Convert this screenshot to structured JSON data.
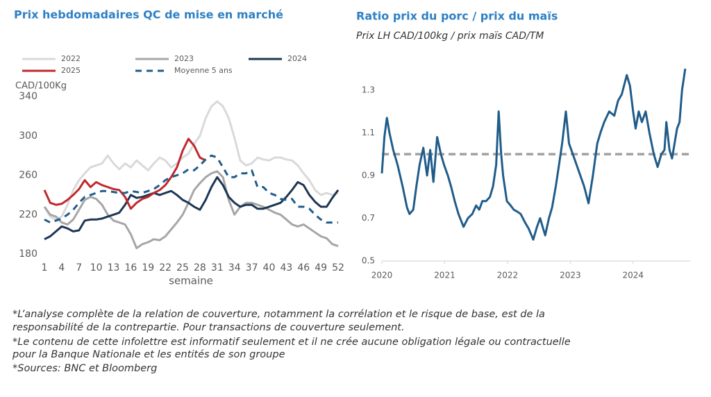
{
  "chart_data": [
    {
      "type": "line",
      "title": "Prix hebdomadaires QC de mise en marché",
      "ylabel": "CAD/100Kg",
      "xlabel": "semaine",
      "x": [
        1,
        2,
        3,
        4,
        5,
        6,
        7,
        8,
        9,
        10,
        11,
        12,
        13,
        14,
        15,
        16,
        17,
        18,
        19,
        20,
        21,
        22,
        23,
        24,
        25,
        26,
        27,
        28,
        29,
        30,
        31,
        32,
        33,
        34,
        35,
        36,
        37,
        38,
        39,
        40,
        41,
        42,
        43,
        44,
        45,
        46,
        47,
        48,
        49,
        50,
        51,
        52
      ],
      "xlim": [
        1,
        52
      ],
      "xticks": [
        1,
        4,
        7,
        10,
        13,
        16,
        19,
        22,
        25,
        28,
        31,
        34,
        37,
        40,
        43,
        46,
        49,
        52
      ],
      "ylim": [
        180,
        340
      ],
      "yticks": [
        180,
        220,
        260,
        300,
        340
      ],
      "series": [
        {
          "name": "2022",
          "color": "#d9d9d9",
          "style": "solid",
          "values": [
            228,
            218,
            215,
            218,
            230,
            245,
            255,
            262,
            268,
            270,
            272,
            280,
            272,
            266,
            272,
            268,
            275,
            270,
            265,
            272,
            278,
            275,
            268,
            272,
            278,
            282,
            292,
            300,
            318,
            330,
            335,
            330,
            318,
            298,
            275,
            270,
            272,
            278,
            276,
            275,
            278,
            278,
            276,
            275,
            270,
            262,
            255,
            245,
            240,
            242,
            240,
            242
          ]
        },
        {
          "name": "2023",
          "color": "#a6a6a6",
          "style": "solid",
          "values": [
            228,
            220,
            218,
            212,
            210,
            215,
            225,
            235,
            238,
            236,
            230,
            220,
            214,
            212,
            210,
            200,
            186,
            190,
            192,
            195,
            194,
            198,
            205,
            212,
            220,
            232,
            245,
            252,
            258,
            262,
            264,
            258,
            235,
            220,
            228,
            232,
            232,
            230,
            228,
            225,
            222,
            220,
            215,
            210,
            208,
            210,
            206,
            202,
            198,
            196,
            190,
            188
          ]
        },
        {
          "name": "2024",
          "color": "#1c3553",
          "style": "solid",
          "values": [
            195,
            198,
            203,
            208,
            206,
            203,
            204,
            214,
            215,
            215,
            216,
            218,
            220,
            222,
            230,
            240,
            237,
            238,
            240,
            242,
            240,
            242,
            244,
            240,
            235,
            232,
            228,
            225,
            235,
            248,
            258,
            250,
            238,
            232,
            228,
            230,
            230,
            226,
            226,
            228,
            230,
            232,
            238,
            245,
            253,
            250,
            240,
            233,
            228,
            228,
            237,
            245
          ]
        },
        {
          "name": "2025",
          "color": "#c0282d",
          "style": "solid",
          "values": [
            245,
            232,
            230,
            231,
            235,
            240,
            246,
            255,
            248,
            253,
            250,
            248,
            246,
            245,
            238,
            226,
            232,
            236,
            238,
            242,
            245,
            250,
            258,
            268,
            285,
            297,
            290,
            278,
            275,
            null,
            null,
            null,
            null,
            null,
            null,
            null,
            null,
            null,
            null,
            null,
            null,
            null,
            null,
            null,
            null,
            null,
            null,
            null,
            null,
            null,
            null,
            null
          ]
        },
        {
          "name": "Moyenne 5 ans",
          "color": "#1f5c8a",
          "style": "dashed",
          "values": [
            215,
            212,
            214,
            216,
            220,
            225,
            232,
            238,
            240,
            242,
            244,
            244,
            243,
            242,
            242,
            244,
            243,
            242,
            244,
            246,
            250,
            255,
            258,
            260,
            262,
            266,
            265,
            270,
            276,
            280,
            278,
            268,
            258,
            258,
            262,
            262,
            265,
            248,
            248,
            242,
            240,
            236,
            235,
            236,
            228,
            228,
            226,
            220,
            215,
            212,
            212,
            212
          ]
        }
      ]
    },
    {
      "type": "line",
      "title": "Ratio prix du porc / prix du maïs",
      "subtitle": "Prix LH CAD/100kg / prix maïs CAD/TM",
      "x": [
        2020.0,
        2020.04,
        2020.08,
        2020.12,
        2020.18,
        2020.25,
        2020.33,
        2020.4,
        2020.44,
        2020.5,
        2020.55,
        2020.6,
        2020.66,
        2020.72,
        2020.77,
        2020.82,
        2020.88,
        2020.94,
        2020.99,
        2021.05,
        2021.1,
        2021.16,
        2021.22,
        2021.3,
        2021.37,
        2021.44,
        2021.5,
        2021.55,
        2021.6,
        2021.66,
        2021.72,
        2021.77,
        2021.82,
        2021.86,
        2021.9,
        2021.93,
        2021.99,
        2022.05,
        2022.1,
        2022.16,
        2022.21,
        2022.28,
        2022.34,
        2022.41,
        2022.47,
        2022.52,
        2022.56,
        2022.6,
        2022.66,
        2022.71,
        2022.77,
        2022.82,
        2022.87,
        2022.93,
        2022.98,
        2023.04,
        2023.1,
        2023.16,
        2023.22,
        2023.29,
        2023.36,
        2023.43,
        2023.48,
        2023.54,
        2023.62,
        2023.7,
        2023.76,
        2023.82,
        2023.9,
        2023.95,
        2024.0,
        2024.04,
        2024.09,
        2024.14,
        2024.2,
        2024.26,
        2024.33,
        2024.39,
        2024.45,
        2024.5,
        2024.53,
        2024.58,
        2024.62,
        2024.66,
        2024.7,
        2024.74,
        2024.78,
        2024.83
      ],
      "xlim": [
        2020.0,
        2024.92
      ],
      "xticks": [
        2020,
        2021,
        2022,
        2023,
        2024
      ],
      "ylim": [
        0.5,
        1.4
      ],
      "yticks": [
        0.5,
        0.7,
        0.9,
        1.1,
        1.3
      ],
      "hline": 1.0,
      "hline_color": "#a0a0a0",
      "series": [
        {
          "name": "Ratio",
          "color": "#1f5c8a",
          "style": "solid",
          "values": [
            0.91,
            1.08,
            1.17,
            1.1,
            1.02,
            0.95,
            0.85,
            0.75,
            0.72,
            0.74,
            0.85,
            0.95,
            1.03,
            0.9,
            1.02,
            0.87,
            1.08,
            1.0,
            0.95,
            0.9,
            0.85,
            0.78,
            0.72,
            0.66,
            0.7,
            0.72,
            0.76,
            0.74,
            0.78,
            0.78,
            0.8,
            0.85,
            0.95,
            1.2,
            1.0,
            0.9,
            0.78,
            0.76,
            0.74,
            0.73,
            0.72,
            0.68,
            0.65,
            0.6,
            0.66,
            0.7,
            0.66,
            0.62,
            0.7,
            0.75,
            0.85,
            0.95,
            1.05,
            1.2,
            1.05,
            1.0,
            0.95,
            0.9,
            0.85,
            0.77,
            0.9,
            1.05,
            1.1,
            1.15,
            1.2,
            1.18,
            1.25,
            1.28,
            1.37,
            1.32,
            1.2,
            1.12,
            1.2,
            1.15,
            1.2,
            1.1,
            1.0,
            0.94,
            1.0,
            1.02,
            1.15,
            1.02,
            0.98,
            1.05,
            1.12,
            1.15,
            1.3,
            1.4
          ]
        }
      ]
    }
  ],
  "notes": [
    "*L’analyse complète de la relation de couverture, notamment la corrélation et le risque de base, est de la",
    "responsabilité de la contrepartie. Pour transactions de couverture seulement.",
    "*Le contenu de cette infolettre est informatif seulement et il ne crée aucune obligation légale ou contractuelle",
    "pour la Banque Nationale et les entités de son groupe",
    "*Sources: BNC et Bloomberg"
  ]
}
